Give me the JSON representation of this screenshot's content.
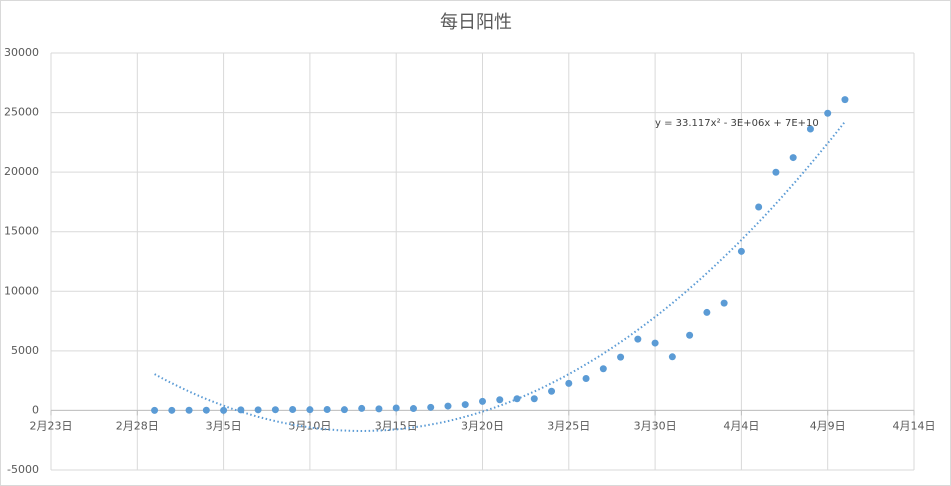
{
  "chart_data": {
    "type": "scatter",
    "title": "每日阳性",
    "x": [
      "03-01",
      "03-02",
      "03-03",
      "03-04",
      "03-05",
      "03-06",
      "03-07",
      "03-08",
      "03-09",
      "03-10",
      "03-11",
      "03-12",
      "03-13",
      "03-14",
      "03-15",
      "03-16",
      "03-17",
      "03-18",
      "03-19",
      "03-20",
      "03-21",
      "03-22",
      "03-23",
      "03-24",
      "03-25",
      "03-26",
      "03-27",
      "03-28",
      "03-29",
      "03-30",
      "03-31",
      "04-01",
      "04-02",
      "04-03",
      "04-04",
      "04-05",
      "04-06",
      "04-07",
      "04-08",
      "04-09",
      "04-10"
    ],
    "series": [
      {
        "color": "#5b9bd5",
        "values": [
          2,
          8,
          14,
          19,
          2,
          45,
          51,
          62,
          76,
          64,
          78,
          64,
          169,
          130,
          202,
          158,
          260,
          366,
          492,
          758,
          896,
          981,
          983,
          1609,
          2269,
          2678,
          3500,
          4477,
          5982,
          5653,
          4502,
          6311,
          8226,
          9006,
          13354,
          17077,
          19989,
          21222,
          23624,
          24944,
          26087
        ]
      }
    ],
    "trendline": "poly2",
    "trendline_label": "y = 33.117x² - 3E+06x + 7E+10",
    "xlim": [
      "02-23",
      "04-14"
    ],
    "xticks": [
      {
        "value": "02-23",
        "label": "2月23日"
      },
      {
        "value": "02-28",
        "label": "2月28日"
      },
      {
        "value": "03-05",
        "label": "3月5日"
      },
      {
        "value": "03-10",
        "label": "3月10日"
      },
      {
        "value": "03-15",
        "label": "3月15日"
      },
      {
        "value": "03-20",
        "label": "3月20日"
      },
      {
        "value": "03-25",
        "label": "3月25日"
      },
      {
        "value": "03-30",
        "label": "3月30日"
      },
      {
        "value": "04-04",
        "label": "4月4日"
      },
      {
        "value": "04-09",
        "label": "4月9日"
      },
      {
        "value": "04-14",
        "label": "4月14日"
      }
    ],
    "ylim": [
      -5000,
      30000
    ],
    "yticks": [
      -5000,
      0,
      5000,
      10000,
      15000,
      20000,
      25000,
      30000
    ],
    "grid": true
  }
}
